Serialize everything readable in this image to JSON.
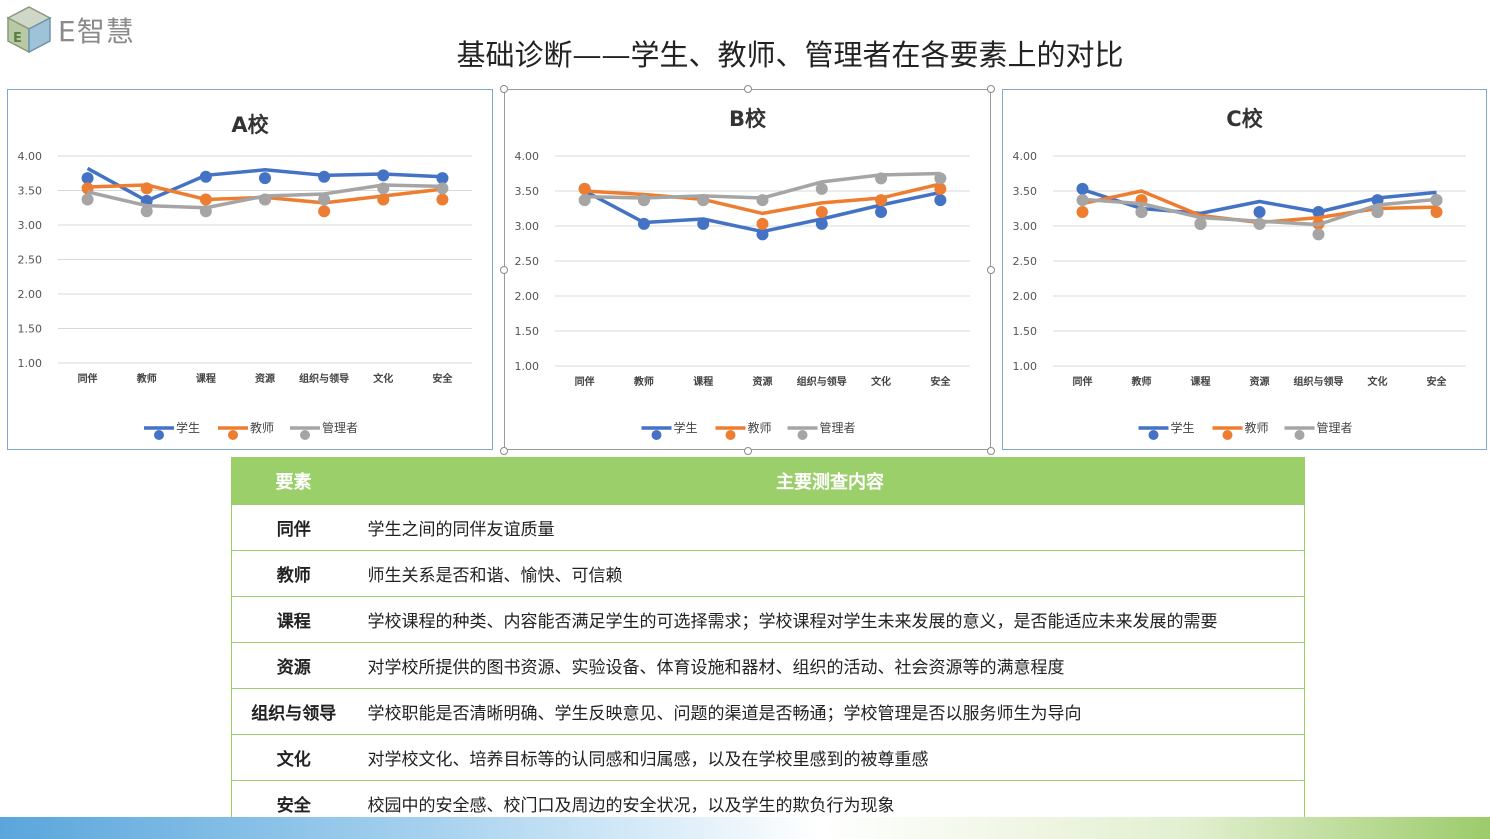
{
  "brand": {
    "name": "E智慧"
  },
  "slide_title": "基础诊断——学生、教师、管理者在各要素上的对比",
  "colors": {
    "student": "#4472C4",
    "teacher": "#ED7D31",
    "admin": "#A5A5A5",
    "table_header": "#9BCF6A"
  },
  "chart_data": [
    {
      "type": "line",
      "title": "A校",
      "categories": [
        "同伴",
        "教师",
        "课程",
        "资源",
        "组织与领导",
        "文化",
        "安全"
      ],
      "ylim": [
        1.0,
        4.0
      ],
      "yticks": [
        "4.00",
        "3.50",
        "3.00",
        "2.50",
        "2.00",
        "1.50",
        "1.00"
      ],
      "grid": true,
      "legend": "bottom",
      "series": [
        {
          "name": "学生",
          "line": [
            3.82,
            3.35,
            3.72,
            3.8,
            3.72,
            3.74,
            3.7
          ],
          "points": [
            3.68,
            3.35,
            3.7,
            3.68,
            3.7,
            3.72,
            3.68
          ]
        },
        {
          "name": "教师",
          "line": [
            3.55,
            3.58,
            3.37,
            3.4,
            3.32,
            3.42,
            3.52
          ],
          "points": [
            3.53,
            3.53,
            3.37,
            3.37,
            3.2,
            3.37,
            3.37
          ]
        },
        {
          "name": "管理者",
          "line": [
            3.48,
            3.28,
            3.25,
            3.42,
            3.45,
            3.58,
            3.56
          ],
          "points": [
            3.37,
            3.2,
            3.2,
            3.37,
            3.37,
            3.53,
            3.53
          ]
        }
      ]
    },
    {
      "type": "line",
      "title": "B校",
      "categories": [
        "同伴",
        "教师",
        "课程",
        "资源",
        "组织与领导",
        "文化",
        "安全"
      ],
      "ylim": [
        1.0,
        4.0
      ],
      "yticks": [
        "4.00",
        "3.50",
        "3.00",
        "2.50",
        "2.00",
        "1.50",
        "1.00"
      ],
      "grid": true,
      "legend": "bottom",
      "series": [
        {
          "name": "学生",
          "line": [
            3.5,
            3.05,
            3.1,
            2.92,
            3.1,
            3.3,
            3.48
          ],
          "points": [
            3.53,
            3.03,
            3.03,
            2.88,
            3.03,
            3.2,
            3.37
          ]
        },
        {
          "name": "教师",
          "line": [
            3.5,
            3.45,
            3.38,
            3.18,
            3.33,
            3.4,
            3.6
          ],
          "points": [
            3.53,
            3.37,
            3.37,
            3.03,
            3.2,
            3.37,
            3.53
          ]
        },
        {
          "name": "管理者",
          "line": [
            3.42,
            3.4,
            3.43,
            3.4,
            3.63,
            3.73,
            3.75
          ],
          "points": [
            3.37,
            3.37,
            3.37,
            3.37,
            3.53,
            3.68,
            3.68
          ]
        }
      ]
    },
    {
      "type": "line",
      "title": "C校",
      "categories": [
        "同伴",
        "教师",
        "课程",
        "资源",
        "组织与领导",
        "文化",
        "安全"
      ],
      "ylim": [
        1.0,
        4.0
      ],
      "yticks": [
        "4.00",
        "3.50",
        "3.00",
        "2.50",
        "2.00",
        "1.50",
        "1.00"
      ],
      "grid": true,
      "legend": "bottom",
      "series": [
        {
          "name": "学生",
          "line": [
            3.52,
            3.25,
            3.18,
            3.35,
            3.2,
            3.4,
            3.48
          ],
          "points": [
            3.53,
            3.2,
            3.03,
            3.2,
            3.2,
            3.37,
            3.37
          ]
        },
        {
          "name": "教师",
          "line": [
            3.32,
            3.5,
            3.15,
            3.05,
            3.12,
            3.25,
            3.27
          ],
          "points": [
            3.2,
            3.37,
            3.03,
            3.03,
            3.03,
            3.2,
            3.2
          ]
        },
        {
          "name": "管理者",
          "line": [
            3.38,
            3.32,
            3.12,
            3.07,
            3.02,
            3.3,
            3.38
          ],
          "points": [
            3.37,
            3.2,
            3.03,
            3.03,
            2.88,
            3.2,
            3.37
          ]
        }
      ]
    }
  ],
  "table": {
    "headers": [
      "要素",
      "主要测查内容"
    ],
    "rows": [
      {
        "element": "同伴",
        "content": "学生之间的同伴友谊质量"
      },
      {
        "element": "教师",
        "content": "师生关系是否和谐、愉快、可信赖"
      },
      {
        "element": "课程",
        "content": "学校课程的种类、内容能否满足学生的可选择需求；学校课程对学生未来发展的意义，是否能适应未来发展的需要"
      },
      {
        "element": "资源",
        "content": "对学校所提供的图书资源、实验设备、体育设施和器材、组织的活动、社会资源等的满意程度"
      },
      {
        "element": "组织与领导",
        "content": "学校职能是否清晰明确、学生反映意见、问题的渠道是否畅通；学校管理是否以服务师生为导向"
      },
      {
        "element": "文化",
        "content": "对学校文化、培养目标等的认同感和归属感，以及在学校里感到的被尊重感"
      },
      {
        "element": "安全",
        "content": "校园中的安全感、校门口及周边的安全状况，以及学生的欺负行为现象"
      }
    ]
  }
}
